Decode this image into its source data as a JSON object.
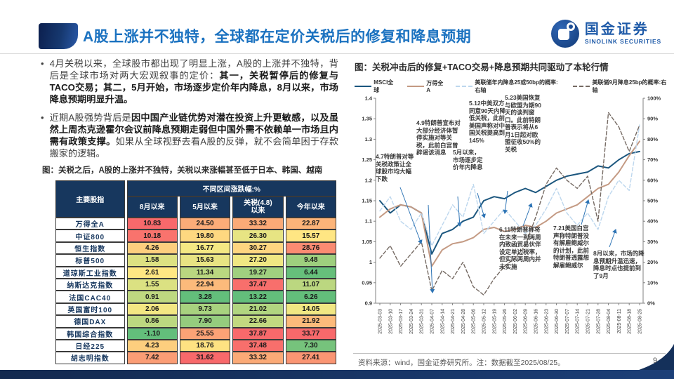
{
  "header": {
    "title": "A股上涨并不独特，全球都在定价关税后的修复和降息预期",
    "logo_cn": "国金证券",
    "logo_en": "SINOLINK SECURITIES"
  },
  "bullets": [
    {
      "segments": [
        {
          "t": "4月关税以来，全球股市都出现了明显上涨，A股的上涨并不独特，背后是全球市场对两大宏观叙事的定价：",
          "b": false
        },
        {
          "t": "其一，关税暂停后的修复与TACO交易；其二，5月开始，市场逐步定价年内降息，8月以来，市场降息预期明显升温。",
          "b": true
        }
      ]
    },
    {
      "segments": [
        {
          "t": "近期A股强势背后是",
          "b": false
        },
        {
          "t": "因中国产业链优势对潜在投资上升更敏感，以及虽然上周杰克逊霍尔会议前降息预期走弱但中国外需不依赖单一市场且内需有政策支撑。",
          "b": true
        },
        {
          "t": "如果从全球视野去看A股的反弹，就不会简单困于存款搬家的逻辑。",
          "b": false
        }
      ]
    }
  ],
  "table_caption": "图：关税之后，A股的上涨并不独特，关税以来涨幅甚至低于日本、韩国、越南",
  "table": {
    "corner_header": "主要股指",
    "group_header": "不同区间涨跌幅:%",
    "col_headers": [
      "8月以来",
      "5月以来",
      "关税(4.8)\n以来",
      "今年以来"
    ],
    "rows": [
      {
        "label": "万得全A",
        "values": [
          10.83,
          24.5,
          33.32,
          22.87
        ]
      },
      {
        "label": "中证800",
        "values": [
          10.18,
          19.8,
          26.3,
          15.57
        ]
      },
      {
        "label": "恒生指数",
        "values": [
          4.26,
          16.77,
          30.27,
          28.76
        ]
      },
      {
        "label": "标普500",
        "values": [
          1.58,
          15.63,
          27.2,
          9.48
        ]
      },
      {
        "label": "道琼斯工业指数",
        "values": [
          2.61,
          11.34,
          19.27,
          6.44
        ]
      },
      {
        "label": "纳斯达克指数",
        "values": [
          1.55,
          22.94,
          37.47,
          11.07
        ]
      },
      {
        "label": "法国CAC40",
        "values": [
          0.91,
          3.28,
          13.22,
          6.26
        ]
      },
      {
        "label": "英国富时100",
        "values": [
          2.06,
          9.73,
          21.02,
          14.05
        ]
      },
      {
        "label": "德国DAX",
        "values": [
          0.86,
          7.9,
          22.66,
          21.92
        ]
      },
      {
        "label": "韩国综合指数",
        "values": [
          -1.1,
          25.55,
          37.87,
          33.77
        ]
      },
      {
        "label": "日经225",
        "values": [
          4.23,
          18.76,
          37.48,
          7.3
        ]
      },
      {
        "label": "胡志明指数",
        "values": [
          7.42,
          31.62,
          33.32,
          27.41
        ]
      }
    ]
  },
  "chart_caption": "图：关税冲击后的修复+TACO交易+降息预期共同驱动了本轮行情",
  "chart_data": {
    "type": "line",
    "title": "关税冲击后的修复+TACO交易+降息预期共同驱动了本轮行情",
    "x": [
      "2025-03-03",
      "2025-03-10",
      "2025-03-17",
      "2025-03-24",
      "2025-03-31",
      "2025-04-07",
      "2025-04-14",
      "2025-04-21",
      "2025-04-28",
      "2025-05-06",
      "2025-05-12",
      "2025-05-19",
      "2025-05-26",
      "2025-06-02",
      "2025-06-09",
      "2025-06-16",
      "2025-06-23",
      "2025-06-30",
      "2025-07-07",
      "2025-07-14",
      "2025-07-21",
      "2025-07-28",
      "2025-08-04",
      "2025-08-11",
      "2025-08-18",
      "2025-08-25"
    ],
    "left_axis": {
      "min": 0.9,
      "max": 1.4,
      "ticks": [
        "0.9",
        "0.95",
        "1",
        "1.05",
        "1.1",
        "1.15",
        "1.2",
        "1.25",
        "1.3",
        "1.35",
        "1.4"
      ]
    },
    "right_axis": {
      "min": 0,
      "max": 100,
      "ticks": [
        "0%",
        "10%",
        "20%",
        "30%",
        "40%",
        "50%",
        "60%",
        "70%",
        "80%",
        "90%",
        "100%"
      ]
    },
    "legend_position": "top",
    "grid": false,
    "series": [
      {
        "name": "MSCI全球",
        "axis": "left",
        "style": "solid",
        "color": "#1b567e",
        "values": [
          1.15,
          1.12,
          1.14,
          1.135,
          1.12,
          1.02,
          1.07,
          1.08,
          1.1,
          1.11,
          1.15,
          1.16,
          1.155,
          1.17,
          1.18,
          1.17,
          1.185,
          1.2,
          1.21,
          1.215,
          1.22,
          1.235,
          1.23,
          1.25,
          1.265,
          1.27
        ]
      },
      {
        "name": "万得全A",
        "axis": "left",
        "style": "solid",
        "color": "#c49a83",
        "values": [
          1.11,
          1.13,
          1.14,
          1.135,
          1.12,
          0.99,
          1.03,
          1.045,
          1.05,
          1.06,
          1.08,
          1.085,
          1.075,
          1.08,
          1.09,
          1.085,
          1.1,
          1.12,
          1.13,
          1.14,
          1.16,
          1.18,
          1.19,
          1.22,
          1.26,
          1.295
        ]
      },
      {
        "name": "美联储年内降息25或50bp的概率:右轴",
        "axis": "right",
        "style": "dashed",
        "color": "#bdd7ee",
        "values": [
          45,
          52,
          40,
          36,
          44,
          28,
          38,
          48,
          42,
          58,
          34,
          40,
          46,
          40,
          34,
          38,
          46,
          56,
          44,
          38,
          44,
          36,
          52,
          60,
          55,
          87
        ]
      },
      {
        "name": "美联储9月降息25bp的概率:右轴",
        "axis": "right",
        "style": "dashed",
        "color": "#756a63",
        "values": [
          22,
          28,
          18,
          24,
          30,
          6,
          16,
          12,
          20,
          8,
          4,
          12,
          18,
          22,
          28,
          42,
          58,
          66,
          60,
          56,
          62,
          40,
          93,
          86,
          74,
          87
        ]
      }
    ]
  },
  "annotations": [
    "4.7特朗普对等关税政策让全球股市均大幅下跌",
    "4.9特朗普宣布对大部分经济体暂停实施对等关税，此前白宫曾辟谣该消息",
    "5月以来，市场逐步定价年内降息",
    "5.12中美双方同意90天内降低关税，此前美国声称对中国关税提高到145%",
    "5.23美国恢复与欧盟为期90天的谈判窗口。此前特朗普表示将从6月1日起对欧盟征收50%的关税",
    "6.11特朗普称将在未来一到两周内致函贸易伙伴设定单边税率，但实际两周内并未实施",
    "7.21美国白宫声称特朗普没有解雇鲍威尔的计划，此前特朗普透露想解雇鲍威尔",
    "8月以来，市场的降息预期升温迅速，降息时点也提前到了9月"
  ],
  "footer": {
    "source": "资料来源：wind，国金证券研究所。注：数据截至2025/08/25。",
    "page": "9"
  },
  "colors": {
    "title_blue": "#1b72c0",
    "header_navy": "#17375e",
    "heat_low": "#63be7b",
    "heat_mid": "#ffeb84",
    "heat_high": "#f8696b"
  }
}
